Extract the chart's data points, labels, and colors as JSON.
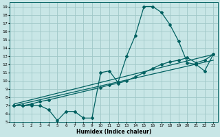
{
  "xlabel": "Humidex (Indice chaleur)",
  "xlim": [
    -0.5,
    23.5
  ],
  "ylim": [
    5,
    19.5
  ],
  "yticks": [
    5,
    6,
    7,
    8,
    9,
    10,
    11,
    12,
    13,
    14,
    15,
    16,
    17,
    18,
    19
  ],
  "xticks": [
    0,
    1,
    2,
    3,
    4,
    5,
    6,
    7,
    8,
    9,
    10,
    11,
    12,
    13,
    14,
    15,
    16,
    17,
    18,
    19,
    20,
    21,
    22,
    23
  ],
  "bg_color": "#c8e6e6",
  "grid_color": "#a0c8c8",
  "line_color": "#006060",
  "line1_x": [
    0,
    1,
    2,
    3,
    4,
    5,
    6,
    7,
    8,
    9,
    10,
    11,
    12,
    13,
    14,
    15,
    16,
    17,
    18,
    19,
    20,
    21,
    22,
    23
  ],
  "line1_y": [
    7.0,
    7.0,
    7.0,
    7.0,
    6.5,
    5.2,
    6.3,
    6.3,
    5.5,
    5.5,
    11.0,
    11.2,
    9.8,
    13.0,
    15.5,
    19.0,
    19.0,
    18.3,
    16.8,
    14.8,
    12.2,
    12.0,
    11.2,
    13.2
  ],
  "line2_x": [
    0,
    1,
    2,
    3,
    4,
    10,
    11,
    12,
    13,
    14,
    15,
    16,
    17,
    18,
    19,
    20,
    21,
    22,
    23
  ],
  "line2_y": [
    7.0,
    7.0,
    7.2,
    7.5,
    7.7,
    9.2,
    9.5,
    9.7,
    10.0,
    10.5,
    11.0,
    11.5,
    12.0,
    12.3,
    12.5,
    12.8,
    12.2,
    12.5,
    13.2
  ],
  "line3_x": [
    0,
    23
  ],
  "line3_y": [
    7.0,
    12.5
  ],
  "line4_x": [
    0,
    23
  ],
  "line4_y": [
    7.2,
    13.2
  ]
}
